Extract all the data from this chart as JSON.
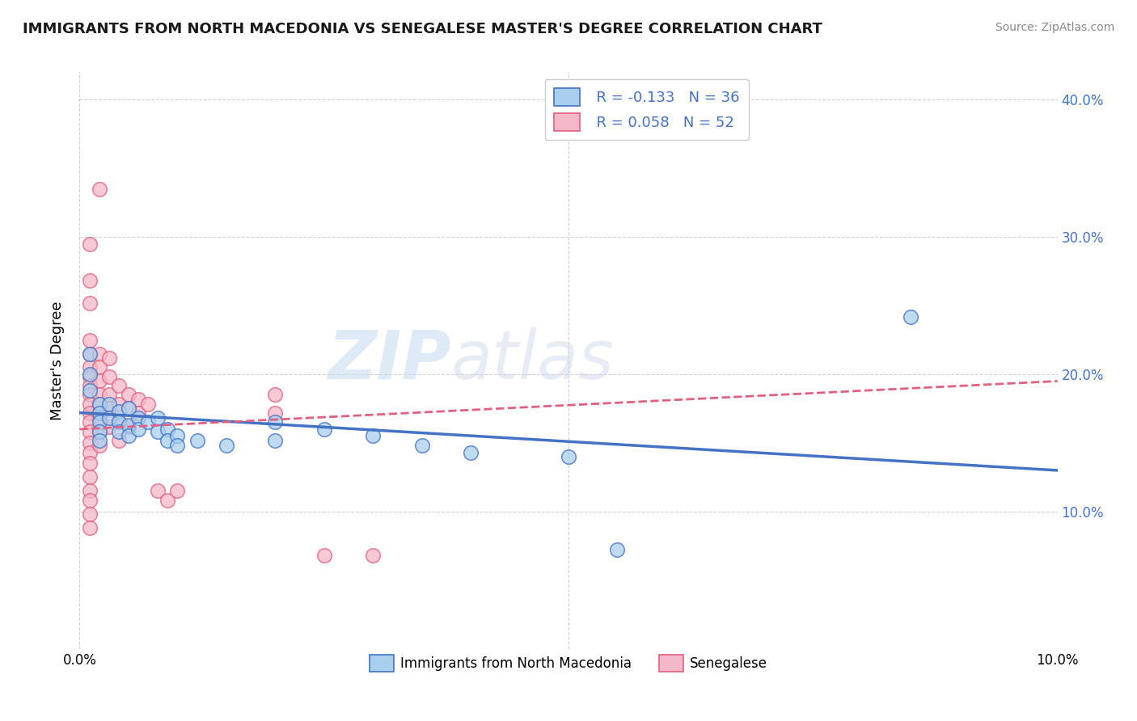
{
  "title": "IMMIGRANTS FROM NORTH MACEDONIA VS SENEGALESE MASTER'S DEGREE CORRELATION CHART",
  "source": "Source: ZipAtlas.com",
  "ylabel": "Master's Degree",
  "xlim": [
    0.0,
    0.1
  ],
  "ylim": [
    0.0,
    0.42
  ],
  "legend1_R": "R = -0.133",
  "legend1_N": "N = 36",
  "legend2_R": "R = 0.058",
  "legend2_N": "N = 52",
  "blue_color": "#A8CFEE",
  "pink_color": "#F4B8C8",
  "blue_line_color": "#4472C4",
  "pink_line_color": "#E06080",
  "watermark_zip": "ZIP",
  "watermark_atlas": "atlas",
  "blue_scatter": [
    [
      0.001,
      0.215
    ],
    [
      0.001,
      0.2
    ],
    [
      0.001,
      0.188
    ],
    [
      0.002,
      0.178
    ],
    [
      0.002,
      0.172
    ],
    [
      0.002,
      0.165
    ],
    [
      0.002,
      0.158
    ],
    [
      0.002,
      0.152
    ],
    [
      0.003,
      0.178
    ],
    [
      0.003,
      0.168
    ],
    [
      0.004,
      0.173
    ],
    [
      0.004,
      0.165
    ],
    [
      0.004,
      0.158
    ],
    [
      0.005,
      0.175
    ],
    [
      0.005,
      0.163
    ],
    [
      0.005,
      0.155
    ],
    [
      0.006,
      0.168
    ],
    [
      0.006,
      0.16
    ],
    [
      0.007,
      0.165
    ],
    [
      0.008,
      0.168
    ],
    [
      0.008,
      0.158
    ],
    [
      0.009,
      0.16
    ],
    [
      0.009,
      0.152
    ],
    [
      0.01,
      0.155
    ],
    [
      0.01,
      0.148
    ],
    [
      0.012,
      0.152
    ],
    [
      0.015,
      0.148
    ],
    [
      0.02,
      0.165
    ],
    [
      0.02,
      0.152
    ],
    [
      0.025,
      0.16
    ],
    [
      0.03,
      0.155
    ],
    [
      0.035,
      0.148
    ],
    [
      0.04,
      0.143
    ],
    [
      0.05,
      0.14
    ],
    [
      0.085,
      0.242
    ],
    [
      0.055,
      0.072
    ]
  ],
  "pink_scatter": [
    [
      0.001,
      0.295
    ],
    [
      0.001,
      0.268
    ],
    [
      0.001,
      0.252
    ],
    [
      0.001,
      0.225
    ],
    [
      0.001,
      0.215
    ],
    [
      0.001,
      0.205
    ],
    [
      0.001,
      0.198
    ],
    [
      0.001,
      0.192
    ],
    [
      0.001,
      0.185
    ],
    [
      0.001,
      0.178
    ],
    [
      0.001,
      0.172
    ],
    [
      0.001,
      0.165
    ],
    [
      0.001,
      0.158
    ],
    [
      0.001,
      0.15
    ],
    [
      0.001,
      0.143
    ],
    [
      0.001,
      0.135
    ],
    [
      0.001,
      0.125
    ],
    [
      0.001,
      0.115
    ],
    [
      0.001,
      0.108
    ],
    [
      0.001,
      0.098
    ],
    [
      0.001,
      0.088
    ],
    [
      0.002,
      0.335
    ],
    [
      0.002,
      0.215
    ],
    [
      0.002,
      0.205
    ],
    [
      0.002,
      0.195
    ],
    [
      0.002,
      0.185
    ],
    [
      0.002,
      0.178
    ],
    [
      0.002,
      0.168
    ],
    [
      0.002,
      0.158
    ],
    [
      0.002,
      0.148
    ],
    [
      0.003,
      0.212
    ],
    [
      0.003,
      0.198
    ],
    [
      0.003,
      0.185
    ],
    [
      0.003,
      0.175
    ],
    [
      0.003,
      0.162
    ],
    [
      0.004,
      0.192
    ],
    [
      0.004,
      0.178
    ],
    [
      0.004,
      0.165
    ],
    [
      0.004,
      0.152
    ],
    [
      0.005,
      0.185
    ],
    [
      0.005,
      0.175
    ],
    [
      0.005,
      0.162
    ],
    [
      0.006,
      0.182
    ],
    [
      0.006,
      0.172
    ],
    [
      0.007,
      0.178
    ],
    [
      0.008,
      0.115
    ],
    [
      0.009,
      0.108
    ],
    [
      0.01,
      0.115
    ],
    [
      0.02,
      0.185
    ],
    [
      0.02,
      0.172
    ],
    [
      0.025,
      0.068
    ],
    [
      0.03,
      0.068
    ]
  ],
  "blue_line": {
    "x0": 0.0,
    "x1": 0.1,
    "y0": 0.172,
    "y1": 0.13
  },
  "pink_line": {
    "x0": 0.0,
    "x1": 0.1,
    "y0": 0.16,
    "y1": 0.195
  }
}
